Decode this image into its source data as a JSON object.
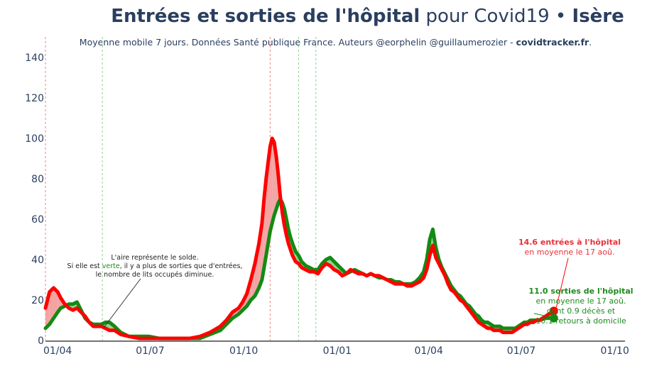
{
  "header": {
    "title_bold": "Entrées et sorties de l'hôpital",
    "title_mid": " pour Covid19 • ",
    "title_region": "Isère",
    "subtitle_main": "Moyenne mobile 7 jours. Données Santé publique France. Auteurs @eorphelin @guillaumerozier - ",
    "subtitle_site": "covidtracker.fr",
    "subtitle_end": "."
  },
  "chart_data": {
    "type": "line",
    "title": "Entrées et sorties de l'hôpital pour Covid19 • Isère",
    "xlabel": "",
    "ylabel": "",
    "ylim": [
      0,
      145
    ],
    "y_ticks": [
      "0",
      "20",
      "40",
      "60",
      "80",
      "100",
      "120",
      "140"
    ],
    "x_ticks": [
      "01/04",
      "01/07",
      "01/10",
      "01/01",
      "01/04",
      "01/07",
      "01/10"
    ],
    "x_range_days": [
      -12,
      558
    ],
    "x_tick_days": [
      0,
      91,
      183,
      275,
      365,
      456,
      548
    ],
    "x_tick_dates": [
      "2020-04-01",
      "2020-07-01",
      "2020-10-01",
      "2021-01-01",
      "2021-04-01",
      "2021-07-01",
      "2021-10-01"
    ],
    "x_start_date": "2020-03-19",
    "grid": false,
    "colors": {
      "entrees": "#ff0000",
      "sorties": "#138a13",
      "fill_red": "#f4a3a3",
      "fill_green": "#8fd38f"
    },
    "vlines": [
      {
        "day": -12,
        "color": "#f08080"
      },
      {
        "day": 44,
        "color": "#90d090"
      },
      {
        "day": 209,
        "color": "#f08080"
      },
      {
        "day": 237,
        "color": "#90d090"
      },
      {
        "day": 254,
        "color": "#90d090"
      }
    ],
    "series": [
      {
        "name": "Entrées",
        "x": [
          -12,
          -8,
          -4,
          0,
          3,
          7,
          11,
          15,
          19,
          23,
          27,
          31,
          35,
          39,
          43,
          47,
          51,
          56,
          62,
          70,
          80,
          90,
          100,
          110,
          120,
          130,
          140,
          150,
          160,
          166,
          172,
          178,
          182,
          186,
          190,
          194,
          198,
          201,
          203,
          205,
          207,
          209,
          211,
          213,
          215,
          217,
          219,
          221,
          223,
          225,
          227,
          229,
          231,
          234,
          237,
          240,
          244,
          248,
          252,
          256,
          260,
          264,
          268,
          272,
          276,
          280,
          284,
          288,
          292,
          296,
          300,
          304,
          308,
          312,
          316,
          320,
          324,
          328,
          332,
          336,
          340,
          344,
          348,
          352,
          356,
          360,
          363,
          366,
          369,
          372,
          375,
          378,
          381,
          384,
          387,
          390,
          393,
          396,
          399,
          402,
          405,
          408,
          411,
          414,
          417,
          420,
          423,
          426,
          429,
          432,
          435,
          438,
          441,
          444,
          447,
          450,
          453,
          456,
          459,
          462,
          465,
          468,
          471,
          474,
          477,
          480,
          483,
          486,
          488
        ],
        "values": [
          16,
          24,
          26,
          24,
          21,
          18,
          16,
          15,
          16,
          14,
          12,
          9,
          7,
          7,
          7,
          6,
          5,
          5,
          3,
          2,
          1,
          1,
          1,
          1,
          1,
          1,
          2,
          4,
          7,
          10,
          14,
          16,
          19,
          23,
          30,
          38,
          48,
          58,
          70,
          80,
          88,
          96,
          100,
          98,
          91,
          82,
          71,
          63,
          57,
          52,
          48,
          45,
          42,
          39,
          38,
          36,
          35,
          34,
          34,
          33,
          36,
          38,
          37,
          35,
          34,
          32,
          33,
          35,
          34,
          33,
          33,
          32,
          33,
          32,
          32,
          31,
          30,
          29,
          28,
          28,
          28,
          27,
          27,
          28,
          29,
          31,
          35,
          42,
          47,
          41,
          38,
          35,
          32,
          28,
          25,
          24,
          22,
          20,
          19,
          17,
          15,
          13,
          11,
          9,
          8,
          7,
          6,
          6,
          5,
          5,
          5,
          4,
          4,
          4,
          4,
          5,
          6,
          7,
          8,
          8,
          9,
          9,
          10,
          10,
          11,
          12,
          13,
          14,
          14.6
        ]
      },
      {
        "name": "Sorties",
        "x": [
          -12,
          -8,
          -4,
          0,
          3,
          7,
          11,
          15,
          19,
          23,
          27,
          31,
          35,
          39,
          43,
          47,
          51,
          56,
          62,
          70,
          80,
          90,
          100,
          110,
          120,
          130,
          140,
          150,
          160,
          166,
          172,
          178,
          182,
          186,
          190,
          194,
          198,
          201,
          203,
          205,
          207,
          209,
          211,
          213,
          215,
          217,
          219,
          221,
          223,
          225,
          227,
          229,
          231,
          234,
          237,
          240,
          244,
          248,
          252,
          256,
          260,
          264,
          268,
          272,
          276,
          280,
          284,
          288,
          292,
          296,
          300,
          304,
          308,
          312,
          316,
          320,
          324,
          328,
          332,
          336,
          340,
          344,
          348,
          352,
          356,
          360,
          363,
          366,
          369,
          372,
          375,
          378,
          381,
          384,
          387,
          390,
          393,
          396,
          399,
          402,
          405,
          408,
          411,
          414,
          417,
          420,
          423,
          426,
          429,
          432,
          435,
          438,
          441,
          444,
          447,
          450,
          453,
          456,
          459,
          462,
          465,
          468,
          471,
          474,
          477,
          480,
          483,
          486,
          488
        ],
        "values": [
          6,
          8,
          11,
          14,
          16,
          17,
          18,
          18,
          19,
          15,
          11,
          9,
          8,
          8,
          8,
          9,
          9,
          7,
          4,
          2,
          2,
          2,
          1,
          1,
          1,
          1,
          1,
          3,
          5,
          8,
          11,
          13,
          15,
          17,
          20,
          22,
          26,
          30,
          36,
          42,
          48,
          54,
          58,
          62,
          65,
          68,
          70,
          68,
          65,
          60,
          55,
          51,
          48,
          44,
          42,
          39,
          37,
          36,
          35,
          35,
          38,
          40,
          41,
          39,
          37,
          35,
          33,
          34,
          35,
          34,
          33,
          32,
          33,
          32,
          31,
          31,
          30,
          30,
          29,
          29,
          28,
          28,
          28,
          29,
          31,
          34,
          40,
          50,
          55,
          46,
          40,
          36,
          33,
          30,
          27,
          25,
          23,
          22,
          20,
          18,
          17,
          15,
          13,
          12,
          10,
          9,
          9,
          8,
          7,
          7,
          7,
          6,
          6,
          6,
          6,
          6,
          7,
          8,
          9,
          9,
          10,
          10,
          10,
          10,
          10.5,
          11,
          11,
          11,
          11
        ]
      }
    ]
  },
  "annotations": {
    "solde_note": [
      "L'aire représente le solde.",
      "Si elle est ",
      "verte",
      ", il y a plus de sorties que d'entrées,",
      "le nombre de lits occupés diminue."
    ],
    "entrees_label": [
      "14.6 entrées à l'hôpital",
      "en moyenne le 17 aoû."
    ],
    "sorties_label": [
      "11.0 sorties de l'hôpital",
      "en moyenne le 17 aoû.",
      "dont 0.9 décès et",
      "10.1 retours à domicile"
    ]
  }
}
